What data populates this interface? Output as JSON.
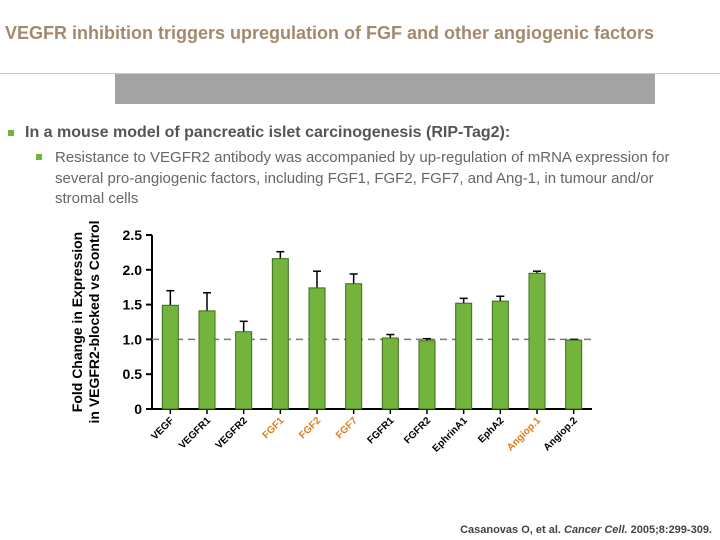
{
  "title": "VEGFR inhibition triggers upregulation of FGF and other angiogenic factors",
  "bullets": [
    {
      "text": "In a mouse model of pancreatic islet carcinogenesis (RIP-Tag2):",
      "sub": [
        "Resistance to VEGFR2 antibody was accompanied by up-regulation of mRNA expression for several pro-angiogenic factors, including FGF1, FGF2, FGF7, and Ang-1, in tumour and/or stromal cells"
      ]
    }
  ],
  "citation": [
    "Casanovas O, et al. ",
    "Cancer Cell.",
    " 2005;8:299-309."
  ],
  "chart_data": {
    "type": "bar",
    "y_label": [
      "Fold Change in Expression",
      "in VEGFR2-blocked vs Control"
    ],
    "categories": [
      "VEGF",
      "VEGFR1",
      "VEGFR2",
      "FGF1",
      "FGF2",
      "FGF7",
      "FGFR1",
      "FGFR2",
      "EphrinA1",
      "EphA2",
      "Angiop.1",
      "Angiop.2"
    ],
    "category_colors": [
      "#000000",
      "#000000",
      "#000000",
      "#e07b1a",
      "#e07b1a",
      "#e07b1a",
      "#000000",
      "#000000",
      "#000000",
      "#000000",
      "#e07b1a",
      "#000000"
    ],
    "values": [
      1.49,
      1.41,
      1.11,
      2.16,
      1.74,
      1.8,
      1.02,
      0.98,
      1.52,
      1.55,
      1.95,
      0.99
    ],
    "errors": [
      0.21,
      0.26,
      0.15,
      0.1,
      0.24,
      0.14,
      0.05,
      0.03,
      0.07,
      0.07,
      0.03,
      0.01
    ],
    "color": "#72b43c",
    "reference_line": 1,
    "ylim": [
      0,
      2.5
    ],
    "yticks": [
      0,
      0.5,
      {
        "value": 1,
        "label": "1.0"
      },
      1.5,
      {
        "value": 2,
        "label": "2.0"
      },
      2.5
    ]
  }
}
